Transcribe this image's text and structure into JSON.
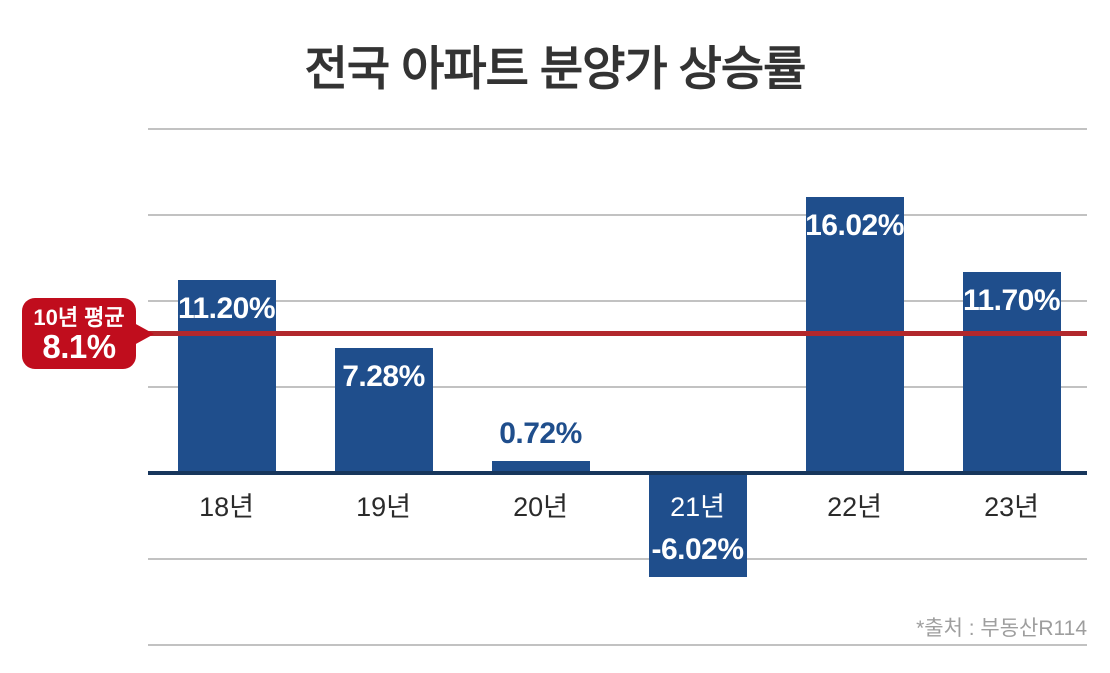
{
  "chart_data": {
    "type": "bar",
    "title": "전국 아파트 분양가 상승률",
    "categories": [
      "18년",
      "19년",
      "20년",
      "21년",
      "22년",
      "23년"
    ],
    "values": [
      11.2,
      7.28,
      0.72,
      -6.02,
      16.02,
      11.7
    ],
    "value_labels": [
      "11.20%",
      "7.28%",
      "0.72%",
      "-6.02%",
      "16.02%",
      "11.70%"
    ],
    "average_line": {
      "value": 8.1,
      "label": "10년 평균",
      "value_label": "8.1%"
    },
    "ylim": [
      -10,
      20
    ],
    "gridline_values": [
      20,
      15,
      10,
      5,
      0,
      -5,
      -10
    ],
    "grid": "horizontal",
    "legend": "none",
    "xlabel": "",
    "ylabel": "",
    "source": "*출처 : 부동산R114"
  },
  "colors": {
    "bar": "#1f4e8c",
    "axis_line": "#17365c",
    "grid_line": "#c2c2c2",
    "average_line": "#b2282d",
    "callout_bg": "#c00d1d",
    "title_text": "#333333",
    "category_text": "#2b2b2b",
    "value_text_light": "#ffffff",
    "value_text_accent": "#1f4e8c",
    "source_text": "#9e9e9e"
  }
}
